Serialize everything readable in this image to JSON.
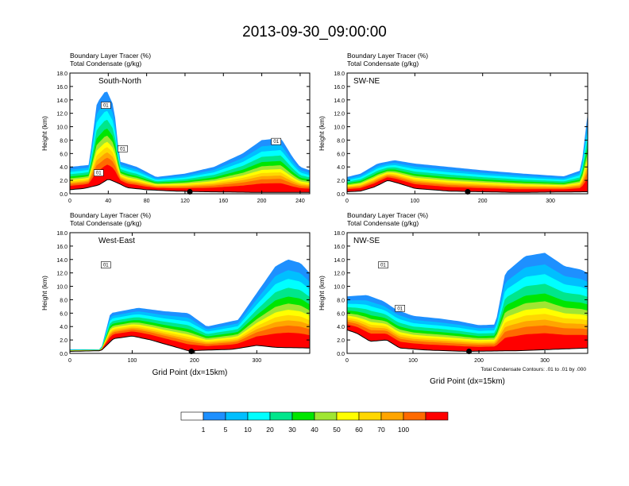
{
  "title": "2013-09-30_09:00:00",
  "chart_data": [
    {
      "type": "area",
      "label": "South-North",
      "header_lines": [
        "Boundary Layer Tracer    (%)",
        "Total Condensate    (g/kg)"
      ],
      "ylabel": "Height (km)",
      "xlabel": "",
      "xlim": [
        0,
        250
      ],
      "ylim": [
        0,
        18
      ],
      "x_ticks": [
        0,
        40,
        80,
        120,
        160,
        200,
        240
      ],
      "y_ticks": [
        "0.0",
        "2.0",
        "4.0",
        "6.0",
        "8.0",
        "10.0",
        "12.0",
        "14.0",
        "16.0",
        "18.0"
      ],
      "terrain": [
        [
          0,
          0.6
        ],
        [
          15,
          0.8
        ],
        [
          30,
          1.3
        ],
        [
          40,
          2.2
        ],
        [
          50,
          1.6
        ],
        [
          60,
          0.9
        ],
        [
          80,
          0.6
        ],
        [
          110,
          0.4
        ],
        [
          140,
          0.3
        ],
        [
          200,
          0.2
        ],
        [
          250,
          0.2
        ]
      ],
      "tracer_top": [
        [
          0,
          4.0
        ],
        [
          20,
          4.3
        ],
        [
          28,
          13.5
        ],
        [
          38,
          15.5
        ],
        [
          46,
          13.0
        ],
        [
          52,
          4.8
        ],
        [
          70,
          4.0
        ],
        [
          90,
          2.5
        ],
        [
          120,
          3.0
        ],
        [
          150,
          4.0
        ],
        [
          180,
          6.0
        ],
        [
          200,
          8.0
        ],
        [
          220,
          8.3
        ],
        [
          232,
          5.5
        ],
        [
          240,
          4.0
        ],
        [
          250,
          3.5
        ]
      ],
      "contour_annotations": [
        "01",
        "01",
        "01",
        "01"
      ],
      "marker_x": 125
    },
    {
      "type": "area",
      "label": "SW-NE",
      "header_lines": [
        "Boundary Layer Tracer    (%)",
        "Total Condensate    (g/kg)"
      ],
      "ylabel": "Height (km)",
      "xlabel": "",
      "xlim": [
        0,
        355
      ],
      "ylim": [
        0,
        18
      ],
      "x_ticks": [
        0,
        100,
        200,
        300
      ],
      "y_ticks": [
        "0.0",
        "2.0",
        "4.0",
        "6.0",
        "8.0",
        "10.0",
        "12.0",
        "14.0",
        "16.0",
        "18.0"
      ],
      "terrain": [
        [
          0,
          0.3
        ],
        [
          20,
          0.4
        ],
        [
          40,
          1.0
        ],
        [
          60,
          2.0
        ],
        [
          75,
          1.6
        ],
        [
          100,
          0.8
        ],
        [
          150,
          0.4
        ],
        [
          250,
          0.2
        ],
        [
          355,
          0.3
        ]
      ],
      "tracer_top": [
        [
          0,
          2.5
        ],
        [
          20,
          3.0
        ],
        [
          45,
          4.5
        ],
        [
          70,
          5.0
        ],
        [
          100,
          4.5
        ],
        [
          150,
          4.0
        ],
        [
          200,
          3.5
        ],
        [
          260,
          3.0
        ],
        [
          320,
          2.6
        ],
        [
          345,
          3.5
        ],
        [
          355,
          12.0
        ]
      ],
      "contour_annotations": [],
      "marker_x": 178
    },
    {
      "type": "area",
      "label": "West-East",
      "header_lines": [
        "Boundary Layer Tracer    (%)",
        "Total Condensate    (g/kg)"
      ],
      "ylabel": "Height (km)",
      "xlabel": "Grid Point (dx=15km)",
      "xlim": [
        0,
        385
      ],
      "ylim": [
        0,
        18
      ],
      "x_ticks": [
        0,
        100,
        200,
        300
      ],
      "y_ticks": [
        "0.0",
        "2.0",
        "4.0",
        "6.0",
        "8.0",
        "10.0",
        "12.0",
        "14.0",
        "16.0",
        "18.0"
      ],
      "terrain": [
        [
          0,
          0.3
        ],
        [
          50,
          0.4
        ],
        [
          70,
          2.2
        ],
        [
          100,
          2.6
        ],
        [
          130,
          2.0
        ],
        [
          160,
          1.2
        ],
        [
          190,
          0.4
        ],
        [
          260,
          0.6
        ],
        [
          300,
          1.2
        ],
        [
          330,
          0.9
        ],
        [
          385,
          0.8
        ]
      ],
      "tracer_top": [
        [
          0,
          0.6
        ],
        [
          50,
          0.6
        ],
        [
          65,
          6.0
        ],
        [
          110,
          6.8
        ],
        [
          150,
          6.3
        ],
        [
          190,
          6.0
        ],
        [
          220,
          4.0
        ],
        [
          270,
          5.0
        ],
        [
          300,
          9.0
        ],
        [
          330,
          13.0
        ],
        [
          350,
          14.0
        ],
        [
          370,
          13.5
        ],
        [
          385,
          12.0
        ]
      ],
      "contour_annotations": [
        "01"
      ],
      "marker_x": 195
    },
    {
      "type": "area",
      "label": "NW-SE",
      "header_lines": [
        "Boundary Layer Tracer    (%)",
        "Total Condensate    (g/kg)"
      ],
      "ylabel": "Height (km)",
      "xlabel": "Grid Point (dx=15km)",
      "footnote": "Total Condensate Contours: .01 to .01 by .000",
      "xlim": [
        0,
        365
      ],
      "ylim": [
        0,
        18
      ],
      "x_ticks": [
        0,
        100,
        200,
        300
      ],
      "y_ticks": [
        "0.0",
        "2.0",
        "4.0",
        "6.0",
        "8.0",
        "10.0",
        "12.0",
        "14.0",
        "16.0",
        "18.0"
      ],
      "terrain": [
        [
          0,
          3.5
        ],
        [
          15,
          3.0
        ],
        [
          35,
          1.8
        ],
        [
          60,
          2.0
        ],
        [
          80,
          0.8
        ],
        [
          120,
          0.5
        ],
        [
          180,
          0.3
        ],
        [
          260,
          0.4
        ],
        [
          365,
          0.8
        ]
      ],
      "tracer_top": [
        [
          0,
          8.5
        ],
        [
          30,
          8.7
        ],
        [
          55,
          7.8
        ],
        [
          75,
          6.5
        ],
        [
          100,
          5.6
        ],
        [
          140,
          5.2
        ],
        [
          170,
          4.8
        ],
        [
          200,
          4.2
        ],
        [
          225,
          4.3
        ],
        [
          240,
          12.0
        ],
        [
          270,
          14.5
        ],
        [
          300,
          15.0
        ],
        [
          330,
          13.0
        ],
        [
          355,
          12.5
        ],
        [
          365,
          12.0
        ]
      ],
      "contour_annotations": [
        "01",
        "01"
      ],
      "marker_x": 185
    }
  ],
  "colorbar": {
    "labels": [
      "1",
      "5",
      "10",
      "20",
      "30",
      "40",
      "50",
      "60",
      "70",
      "100"
    ],
    "colors": [
      "#ffffff",
      "#1e90ff",
      "#00bfff",
      "#00ffff",
      "#00e68c",
      "#00e600",
      "#a0e632",
      "#ffff00",
      "#ffd700",
      "#ffa500",
      "#ff6a00",
      "#ff0000"
    ]
  }
}
